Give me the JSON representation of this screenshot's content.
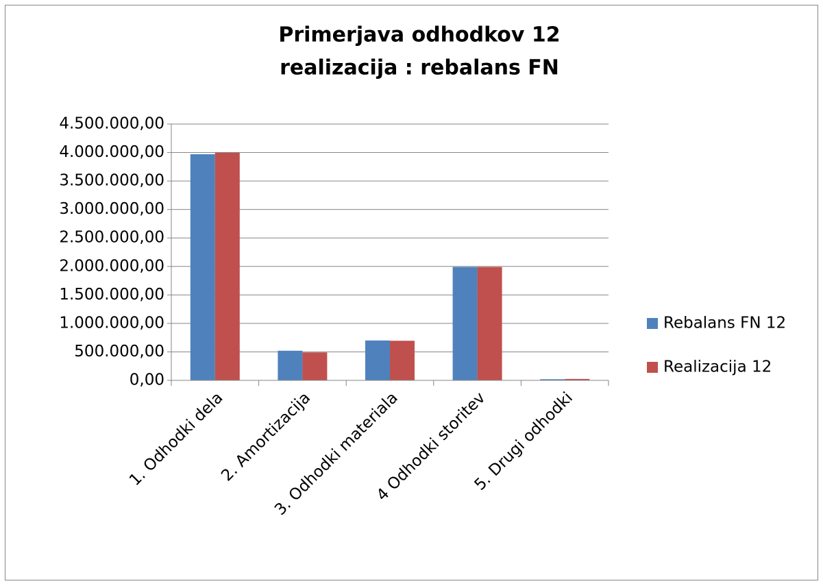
{
  "chart_data": {
    "type": "bar",
    "title": [
      "Primerjava odhodkov 12",
      "realizacija : rebalans FN"
    ],
    "categories": [
      "1. Odhodki dela",
      "2. Amortizacija",
      "3. Odhodki materiala",
      "4 Odhodki storitev",
      "5. Drugi odhodki"
    ],
    "series": [
      {
        "name": "Rebalans FN 12",
        "color": "#4f81bd",
        "values": [
          3970000,
          520000,
          700000,
          1990000,
          20000
        ]
      },
      {
        "name": "Realizacija 12",
        "color": "#c0504d",
        "values": [
          3995000,
          490000,
          695000,
          1990000,
          25000
        ]
      }
    ],
    "ylim": [
      0,
      4500000
    ],
    "yticks": [
      {
        "value": 0,
        "label": "0,00"
      },
      {
        "value": 500000,
        "label": "500.000,00"
      },
      {
        "value": 1000000,
        "label": "1.000.000,00"
      },
      {
        "value": 1500000,
        "label": "1.500.000,00"
      },
      {
        "value": 2000000,
        "label": "2.000.000,00"
      },
      {
        "value": 2500000,
        "label": "2.500.000,00"
      },
      {
        "value": 3000000,
        "label": "3.000.000,00"
      },
      {
        "value": 3500000,
        "label": "3.500.000,00"
      },
      {
        "value": 4000000,
        "label": "4.000.000,00"
      },
      {
        "value": 4500000,
        "label": "4.500.000,00"
      }
    ],
    "grid": true,
    "legend": "right"
  }
}
